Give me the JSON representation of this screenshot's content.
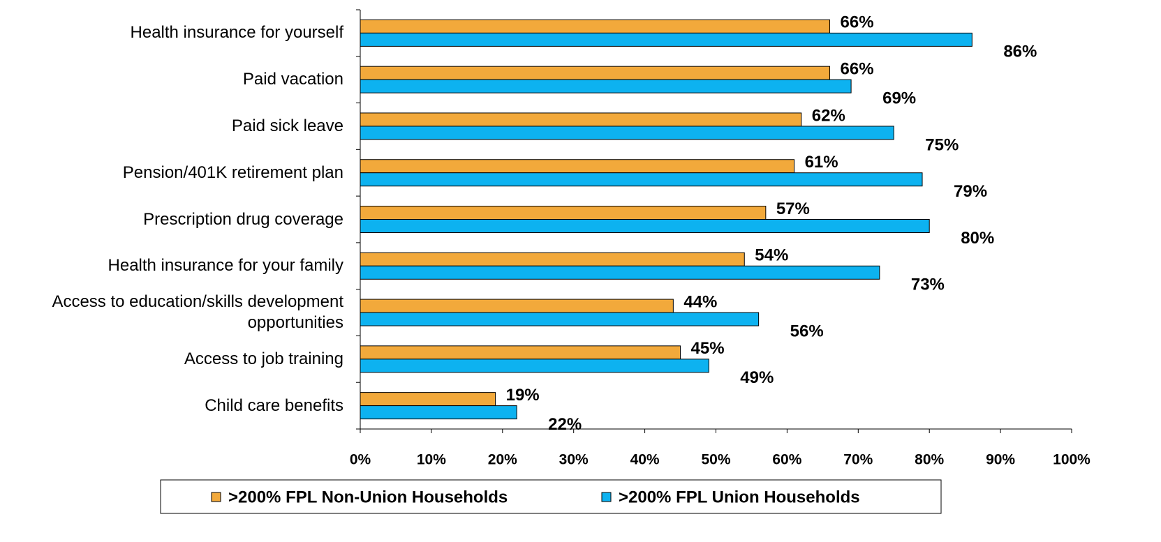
{
  "chart_data": {
    "type": "hbar",
    "categories": [
      "Health insurance for yourself",
      "Paid vacation",
      "Paid sick leave",
      "Pension/401K retirement plan",
      "Prescription drug coverage",
      "Health insurance for your family",
      "Access to education/skills development\nopportunities",
      "Access to job training",
      "Child care benefits"
    ],
    "series": [
      {
        "name": ">200% FPL Non-Union Households",
        "color": "#F2A93B",
        "values": [
          66,
          66,
          62,
          61,
          57,
          54,
          44,
          45,
          19
        ],
        "value_labels": [
          "66%",
          "66%",
          "62%",
          "61%",
          "57%",
          "54%",
          "44%",
          "45%",
          "19%"
        ]
      },
      {
        "name": ">200% FPL Union Households",
        "color": "#0DB2F0",
        "values": [
          86,
          69,
          75,
          79,
          80,
          73,
          56,
          49,
          22
        ],
        "value_labels": [
          "86%",
          "69%",
          "75%",
          "79%",
          "80%",
          "73%",
          "56%",
          "49%",
          "22%"
        ]
      }
    ],
    "xlim": [
      0,
      100
    ],
    "xticks": [
      {
        "value": 0,
        "label": "0%"
      },
      {
        "value": 10,
        "label": "10%"
      },
      {
        "value": 20,
        "label": "20%"
      },
      {
        "value": 30,
        "label": "30%"
      },
      {
        "value": 40,
        "label": "40%"
      },
      {
        "value": 50,
        "label": "50%"
      },
      {
        "value": 60,
        "label": "60%"
      },
      {
        "value": 70,
        "label": "70%"
      },
      {
        "value": 80,
        "label": "80%"
      },
      {
        "value": 90,
        "label": "90%"
      },
      {
        "value": 100,
        "label": "100%"
      }
    ],
    "legend": "bottom"
  }
}
